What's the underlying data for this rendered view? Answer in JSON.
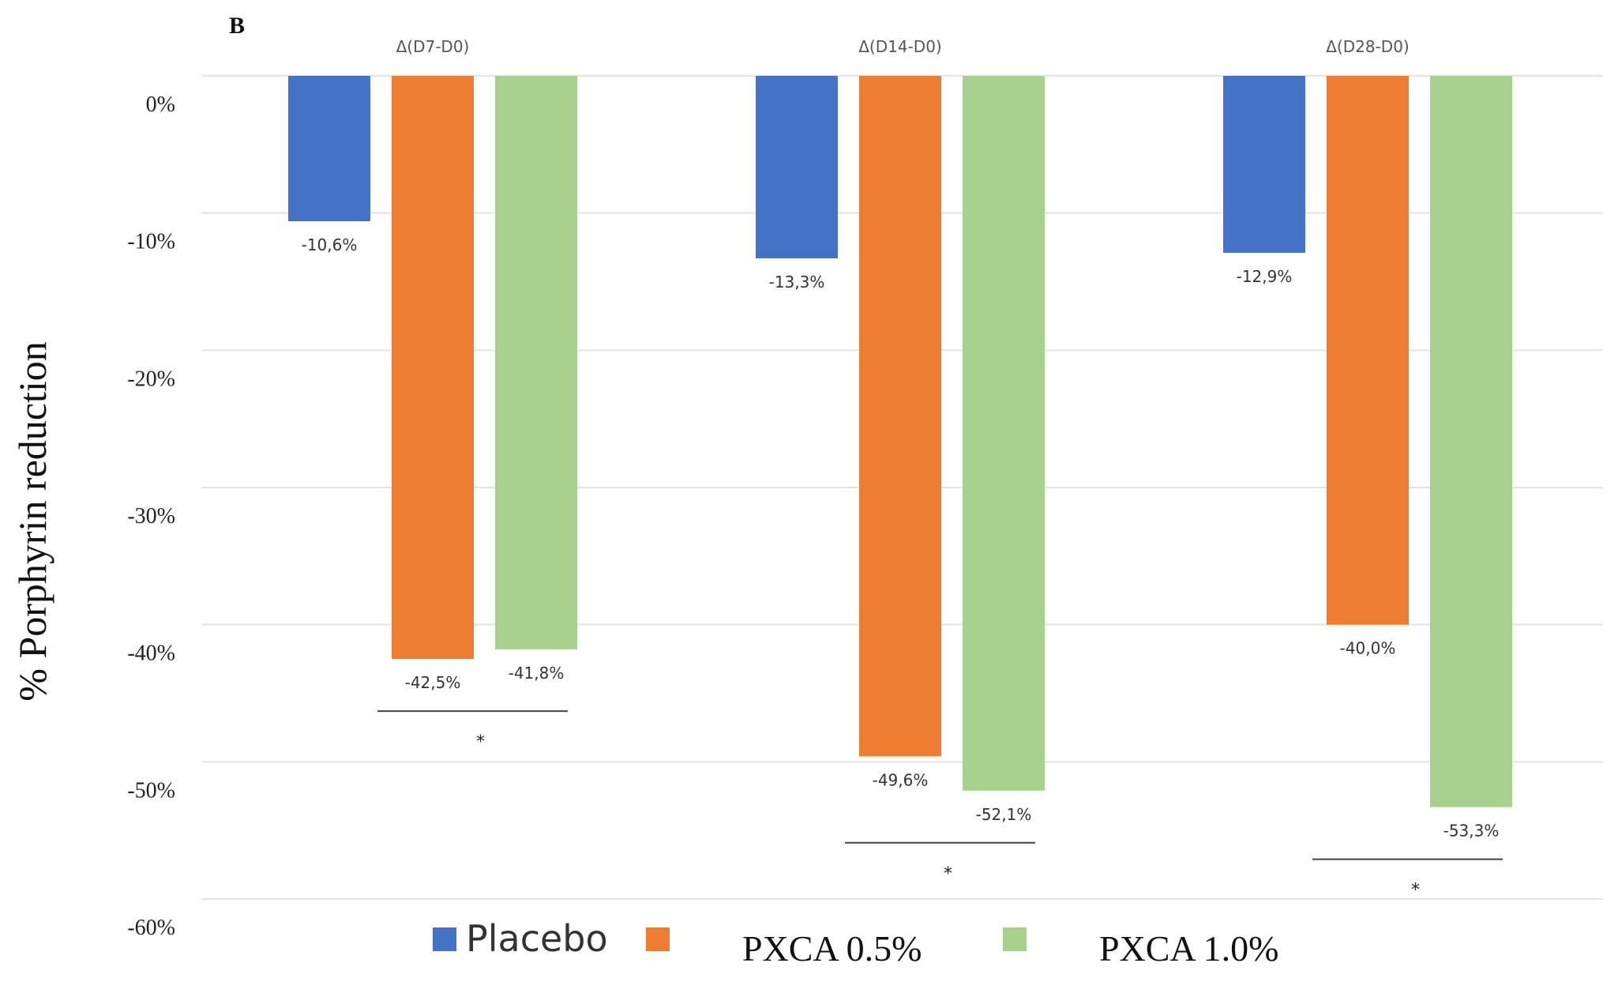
{
  "chart_data": {
    "type": "bar",
    "panel_label": "B",
    "ylabel": "% Porphyrin reduction",
    "categories": [
      "Δ(D7-D0)",
      "Δ(D14-D0)",
      "Δ(D28-D0)"
    ],
    "ylim": [
      -60,
      0
    ],
    "yticks": [
      0,
      -10,
      -20,
      -30,
      -40,
      -50,
      -60
    ],
    "ytick_labels": [
      "0%",
      "-10%",
      "-20%",
      "-30%",
      "-40%",
      "-50%",
      "-60%"
    ],
    "grid": true,
    "legend_position": "bottom",
    "series": [
      {
        "name": "Placebo",
        "color": "#4472C4",
        "values": [
          -10.6,
          -13.3,
          -12.9
        ],
        "labels": [
          "-10,6%",
          "-13,3%",
          "-12,9%"
        ]
      },
      {
        "name": "PXCA 0.5%",
        "color": "#ED7D31",
        "values": [
          -42.5,
          -49.6,
          -40.0
        ],
        "labels": [
          "-42,5%",
          "-49,6%",
          "-40,0%"
        ]
      },
      {
        "name": "PXCA 1.0%",
        "color": "#A9D18E",
        "values": [
          -41.8,
          -52.1,
          -53.3
        ],
        "labels": [
          "-41,8%",
          "-52,1%",
          "-53,3%"
        ]
      }
    ],
    "significance": [
      {
        "category": 0,
        "label": "*"
      },
      {
        "category": 1,
        "label": "*"
      },
      {
        "category": 2,
        "label": "*"
      }
    ]
  }
}
